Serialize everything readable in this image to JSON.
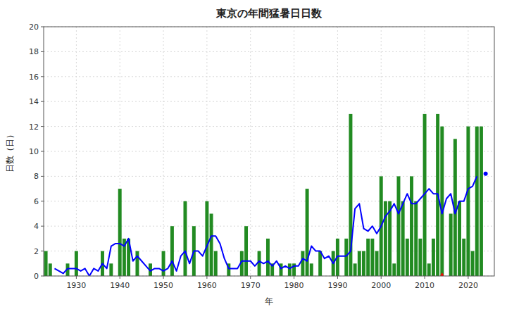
{
  "chart_data": {
    "type": "bar",
    "title": "東京の年間猛暑日日数",
    "x_label": "年",
    "y_label": "日数（日）",
    "xlim": [
      1922.5,
      2026
    ],
    "xticks": [
      1930,
      1940,
      1950,
      1960,
      1970,
      1980,
      1990,
      2000,
      2010,
      2020
    ],
    "ylim": [
      0,
      20
    ],
    "yticks": [
      0,
      2,
      4,
      6,
      8,
      10,
      12,
      14,
      16,
      18,
      20
    ],
    "grid": true,
    "series": [
      {
        "type": "bar",
        "color": "#228B22",
        "x": [
          1923,
          1924,
          1925,
          1926,
          1927,
          1928,
          1929,
          1930,
          1931,
          1932,
          1933,
          1934,
          1935,
          1936,
          1937,
          1938,
          1939,
          1940,
          1941,
          1942,
          1943,
          1944,
          1945,
          1946,
          1947,
          1948,
          1949,
          1950,
          1951,
          1952,
          1953,
          1954,
          1955,
          1956,
          1957,
          1958,
          1959,
          1960,
          1961,
          1962,
          1963,
          1964,
          1965,
          1966,
          1967,
          1968,
          1969,
          1970,
          1971,
          1972,
          1973,
          1974,
          1975,
          1976,
          1977,
          1978,
          1979,
          1980,
          1981,
          1982,
          1983,
          1984,
          1985,
          1986,
          1987,
          1988,
          1989,
          1990,
          1991,
          1992,
          1993,
          1994,
          1995,
          1996,
          1997,
          1998,
          1999,
          2000,
          2001,
          2002,
          2003,
          2004,
          2005,
          2006,
          2007,
          2008,
          2009,
          2010,
          2011,
          2012,
          2013,
          2014,
          2015,
          2016,
          2017,
          2018,
          2019,
          2020,
          2021,
          2022,
          2023
        ],
        "values": [
          2,
          1,
          0,
          0,
          0,
          1,
          0,
          2,
          0,
          0,
          0,
          0,
          0,
          2,
          0,
          1,
          0,
          7,
          3,
          3,
          0,
          2,
          0,
          0,
          1,
          0,
          0,
          2,
          0,
          4,
          0,
          0,
          6,
          0,
          4,
          0,
          0,
          6,
          5,
          2,
          0,
          0,
          1,
          0,
          0,
          2,
          4,
          0,
          0,
          2,
          0,
          3,
          1,
          0,
          1,
          0,
          1,
          1,
          0,
          2,
          7,
          1,
          0,
          2,
          0,
          0,
          2,
          3,
          0,
          3,
          13,
          1,
          2,
          2,
          3,
          3,
          2,
          8,
          6,
          6,
          1,
          8,
          6,
          3,
          8,
          6,
          3,
          13,
          1,
          3,
          13,
          12,
          0,
          5,
          11,
          6,
          3,
          12,
          2,
          12,
          12
        ]
      },
      {
        "type": "line",
        "color": "#0000FF",
        "line_style": "solid",
        "x": [
          1925,
          1926,
          1927,
          1928,
          1929,
          1930,
          1931,
          1932,
          1933,
          1934,
          1935,
          1936,
          1937,
          1938,
          1939,
          1940,
          1941,
          1942,
          1943,
          1944,
          1945,
          1946,
          1947,
          1948,
          1949,
          1950,
          1951,
          1952,
          1953,
          1954,
          1955,
          1956,
          1957,
          1958,
          1959,
          1960,
          1961,
          1962,
          1963,
          1964,
          1965,
          1966,
          1967,
          1968,
          1969,
          1970,
          1971,
          1972,
          1973,
          1974,
          1975,
          1976,
          1977,
          1978,
          1979,
          1980,
          1981,
          1982,
          1983,
          1984,
          1985,
          1986,
          1987,
          1988,
          1989,
          1990,
          1991,
          1992,
          1993,
          1994,
          1995,
          1996,
          1997,
          1998,
          1999,
          2000,
          2001,
          2002,
          2003,
          2004,
          2005,
          2006,
          2007,
          2008,
          2009,
          2010,
          2011,
          2012,
          2013,
          2014,
          2015,
          2016,
          2017,
          2018,
          2019,
          2020,
          2021,
          2022
        ],
        "values": [
          0.6,
          0.4,
          0.2,
          0.6,
          0.6,
          0.6,
          0.4,
          0.6,
          0.0,
          0.6,
          0.4,
          1.0,
          0.6,
          2.4,
          2.6,
          2.6,
          2.4,
          3.0,
          1.2,
          1.6,
          1.2,
          0.8,
          0.4,
          0.6,
          0.6,
          0.4,
          0.6,
          1.2,
          0.4,
          1.6,
          2.0,
          1.0,
          2.0,
          2.0,
          1.6,
          2.4,
          3.2,
          3.2,
          2.6,
          1.4,
          0.6,
          0.6,
          0.6,
          1.2,
          1.2,
          1.2,
          0.8,
          1.2,
          1.0,
          1.2,
          0.8,
          1.2,
          0.6,
          0.8,
          0.6,
          0.8,
          0.8,
          1.4,
          1.2,
          2.4,
          2.0,
          2.0,
          1.4,
          1.6,
          1.0,
          1.6,
          1.6,
          1.6,
          2.0,
          5.4,
          5.8,
          3.8,
          3.6,
          4.0,
          3.4,
          4.0,
          4.8,
          5.2,
          5.8,
          5.0,
          5.8,
          6.6,
          5.8,
          5.8,
          6.2,
          6.6,
          7.0,
          6.6,
          6.6,
          5.0,
          6.2,
          6.6,
          5.0,
          6.0,
          6.0,
          7.0,
          7.2,
          8.0
        ]
      },
      {
        "type": "scatter",
        "color": "#FF0000",
        "marker": "triangle",
        "x": [
          2014
        ],
        "values": [
          0
        ]
      },
      {
        "type": "scatter",
        "color": "#0000FF",
        "marker": "circle",
        "x": [
          2024
        ],
        "values": [
          8.2
        ]
      }
    ]
  }
}
